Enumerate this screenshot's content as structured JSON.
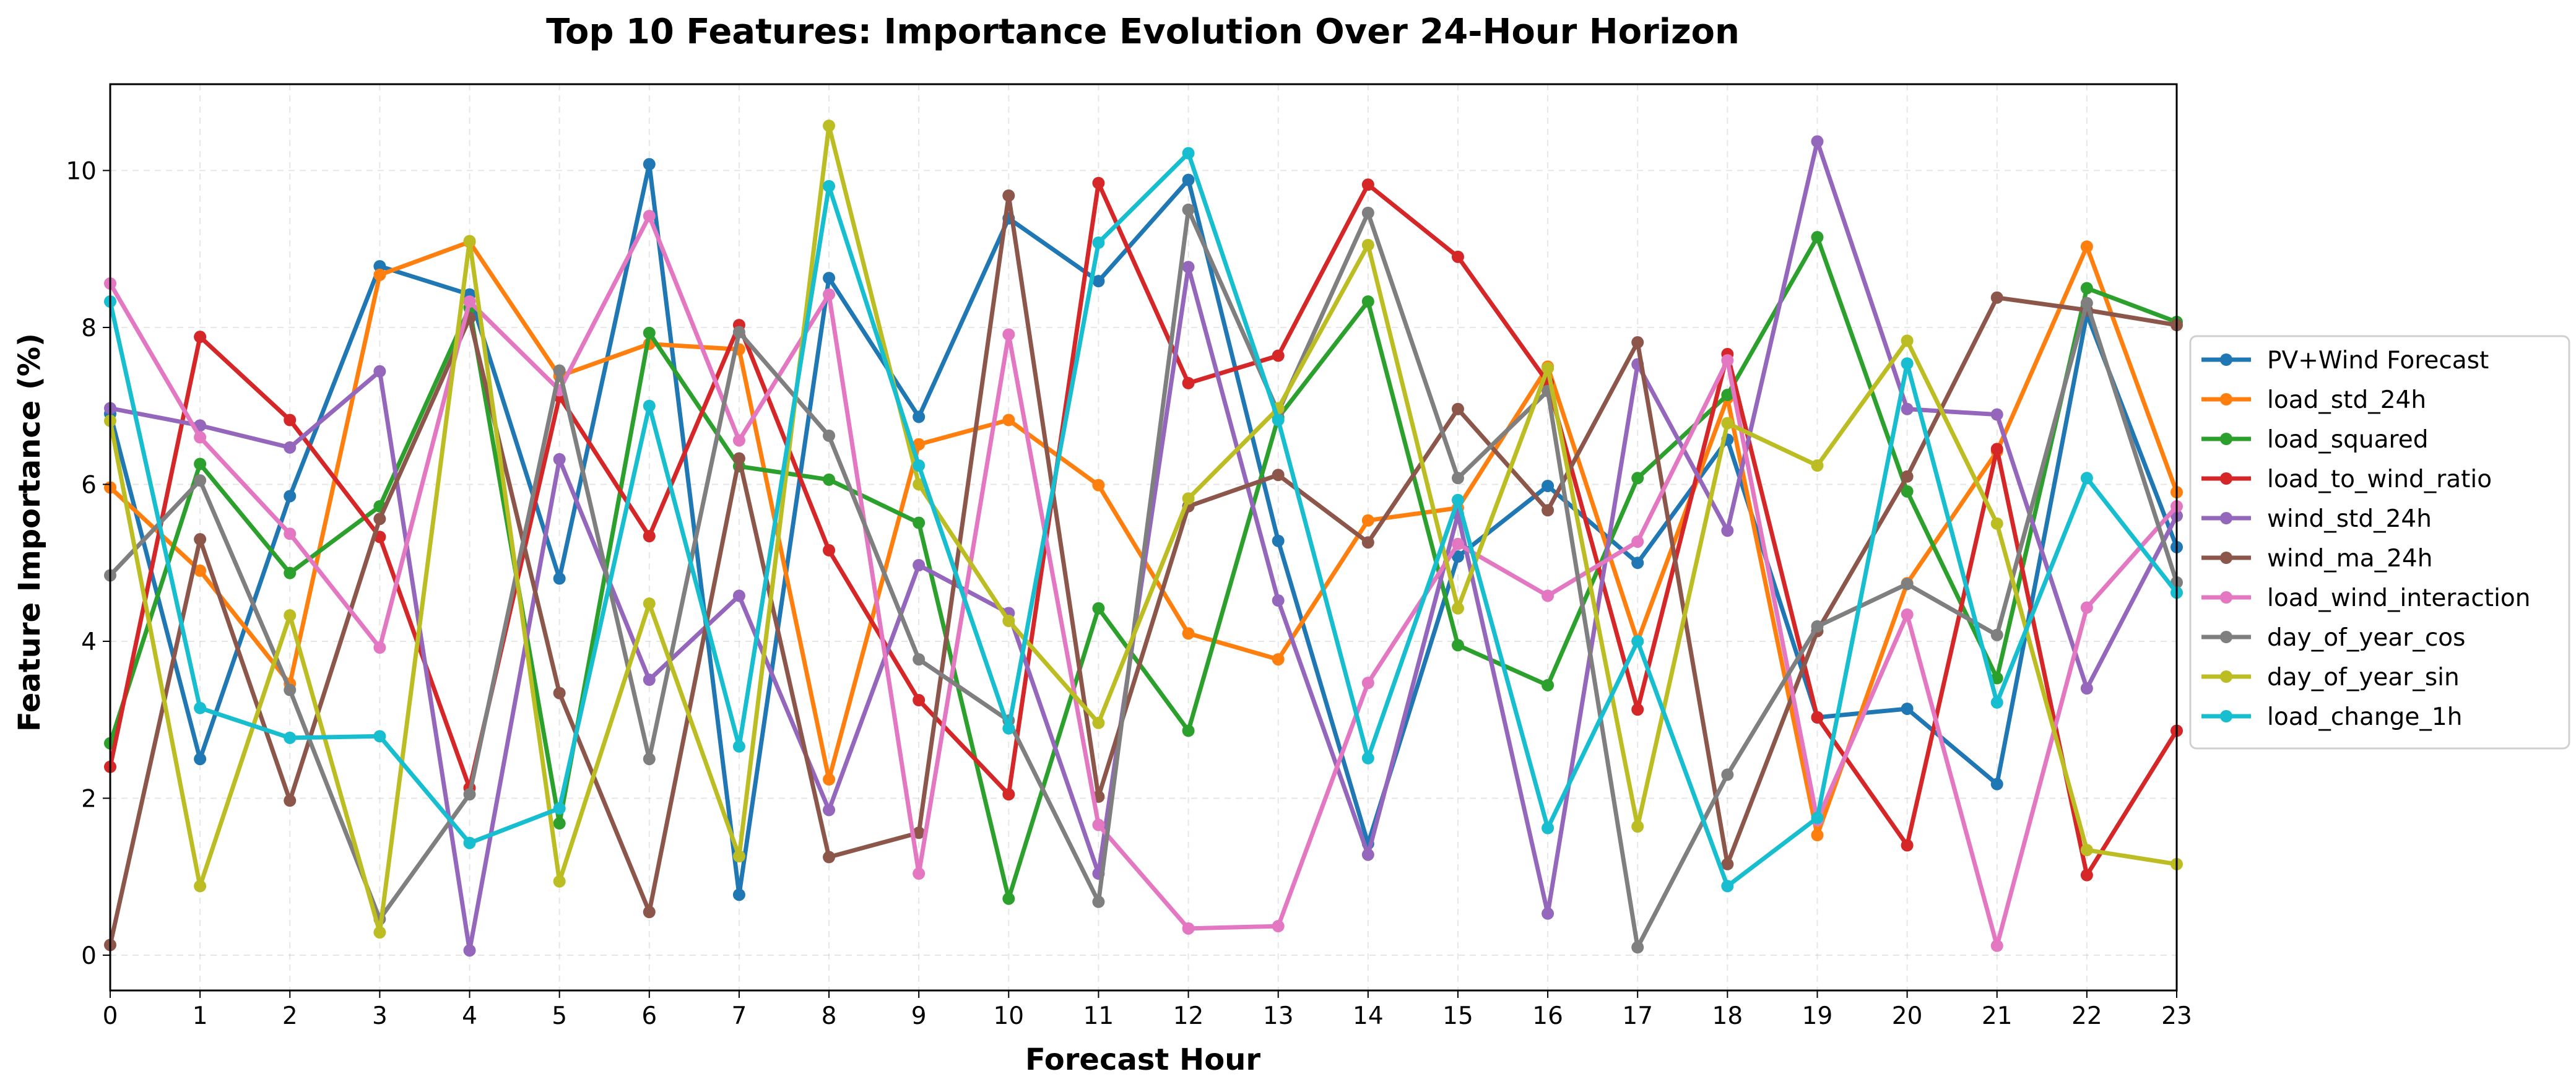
{
  "chart_data": {
    "type": "line",
    "title": "Top 10 Features: Importance Evolution Over 24-Hour Horizon",
    "xlabel": "Forecast Hour",
    "ylabel": "Feature Importance (%)",
    "xlim": [
      0,
      23
    ],
    "ylim": [
      -0.45,
      11.1
    ],
    "x_ticks": [
      0,
      1,
      2,
      3,
      4,
      5,
      6,
      7,
      8,
      9,
      10,
      11,
      12,
      13,
      14,
      15,
      16,
      17,
      18,
      19,
      20,
      21,
      22,
      23
    ],
    "y_ticks": [
      0,
      2,
      4,
      6,
      8,
      10
    ],
    "grid": true,
    "legend_position": "right-outside",
    "x": [
      0,
      1,
      2,
      3,
      4,
      5,
      6,
      7,
      8,
      9,
      10,
      11,
      12,
      13,
      14,
      15,
      16,
      17,
      18,
      19,
      20,
      21,
      22,
      23
    ],
    "series": [
      {
        "name": "PV+Wind Forecast",
        "color": "#1f77b4",
        "values": [
          6.9,
          2.5,
          5.85,
          8.78,
          8.42,
          4.8,
          10.08,
          0.77,
          8.63,
          6.86,
          9.39,
          8.59,
          9.88,
          5.28,
          1.42,
          5.08,
          5.98,
          5.0,
          6.57,
          3.03,
          3.14,
          2.18,
          8.17,
          5.2
        ]
      },
      {
        "name": "load_std_24h",
        "color": "#ff7f0e",
        "values": [
          5.96,
          4.9,
          3.46,
          8.67,
          9.09,
          7.38,
          7.79,
          7.72,
          2.24,
          6.51,
          6.82,
          5.99,
          4.1,
          3.77,
          5.54,
          5.7,
          7.5,
          4.0,
          7.1,
          1.53,
          4.74,
          6.42,
          9.03,
          5.9
        ]
      },
      {
        "name": "load_squared",
        "color": "#2ca02c",
        "values": [
          2.7,
          6.26,
          4.87,
          5.72,
          8.25,
          1.68,
          7.93,
          6.23,
          6.06,
          5.51,
          0.72,
          4.42,
          2.86,
          6.85,
          8.33,
          3.95,
          3.44,
          6.08,
          7.14,
          9.15,
          5.91,
          3.53,
          8.5,
          8.07
        ]
      },
      {
        "name": "load_to_wind_ratio",
        "color": "#d62728",
        "values": [
          2.4,
          7.88,
          6.82,
          5.33,
          2.13,
          7.12,
          5.34,
          8.03,
          5.16,
          3.25,
          2.05,
          9.84,
          7.29,
          7.64,
          9.82,
          8.9,
          7.3,
          3.13,
          7.66,
          3.03,
          1.4,
          6.45,
          1.02,
          2.86
        ]
      },
      {
        "name": "wind_std_24h",
        "color": "#9467bd",
        "values": [
          6.97,
          6.75,
          6.47,
          7.44,
          0.06,
          6.32,
          3.51,
          4.58,
          1.85,
          4.97,
          4.36,
          1.04,
          8.77,
          4.52,
          1.28,
          5.62,
          0.53,
          7.53,
          5.41,
          10.37,
          6.96,
          6.89,
          3.4,
          5.6
        ]
      },
      {
        "name": "wind_ma_24h",
        "color": "#8c564b",
        "values": [
          0.13,
          5.3,
          1.97,
          5.56,
          8.12,
          3.34,
          0.55,
          6.33,
          1.25,
          1.56,
          9.68,
          2.02,
          5.72,
          6.12,
          5.26,
          6.96,
          5.67,
          7.81,
          1.16,
          4.13,
          6.1,
          8.38,
          8.22,
          8.03
        ]
      },
      {
        "name": "load_wind_interaction",
        "color": "#e377c2",
        "values": [
          8.56,
          6.6,
          5.37,
          3.92,
          8.33,
          7.2,
          9.42,
          6.56,
          8.42,
          1.04,
          7.91,
          1.66,
          0.34,
          0.37,
          3.47,
          5.24,
          4.58,
          5.27,
          7.58,
          1.72,
          4.34,
          0.12,
          4.43,
          5.72
        ]
      },
      {
        "name": "day_of_year_cos",
        "color": "#7f7f7f",
        "values": [
          4.84,
          6.05,
          3.38,
          0.46,
          2.05,
          7.45,
          2.5,
          7.94,
          6.62,
          3.77,
          2.99,
          0.68,
          9.5,
          6.92,
          9.46,
          6.08,
          7.19,
          0.1,
          2.3,
          4.19,
          4.73,
          4.08,
          8.31,
          4.75
        ]
      },
      {
        "name": "day_of_year_sin",
        "color": "#bcbd22",
        "values": [
          6.81,
          0.88,
          4.33,
          0.29,
          9.1,
          0.94,
          4.48,
          1.26,
          10.57,
          6.0,
          4.26,
          2.96,
          5.82,
          6.97,
          9.05,
          4.42,
          7.48,
          1.64,
          6.78,
          6.24,
          7.83,
          5.5,
          1.34,
          1.16
        ]
      },
      {
        "name": "load_change_1h",
        "color": "#17becf",
        "values": [
          8.33,
          3.15,
          2.77,
          2.79,
          1.43,
          1.87,
          7.0,
          2.66,
          9.8,
          6.24,
          2.89,
          9.08,
          10.22,
          6.82,
          2.51,
          5.8,
          1.62,
          4.0,
          0.88,
          1.75,
          7.54,
          3.22,
          6.08,
          4.62
        ]
      }
    ]
  }
}
